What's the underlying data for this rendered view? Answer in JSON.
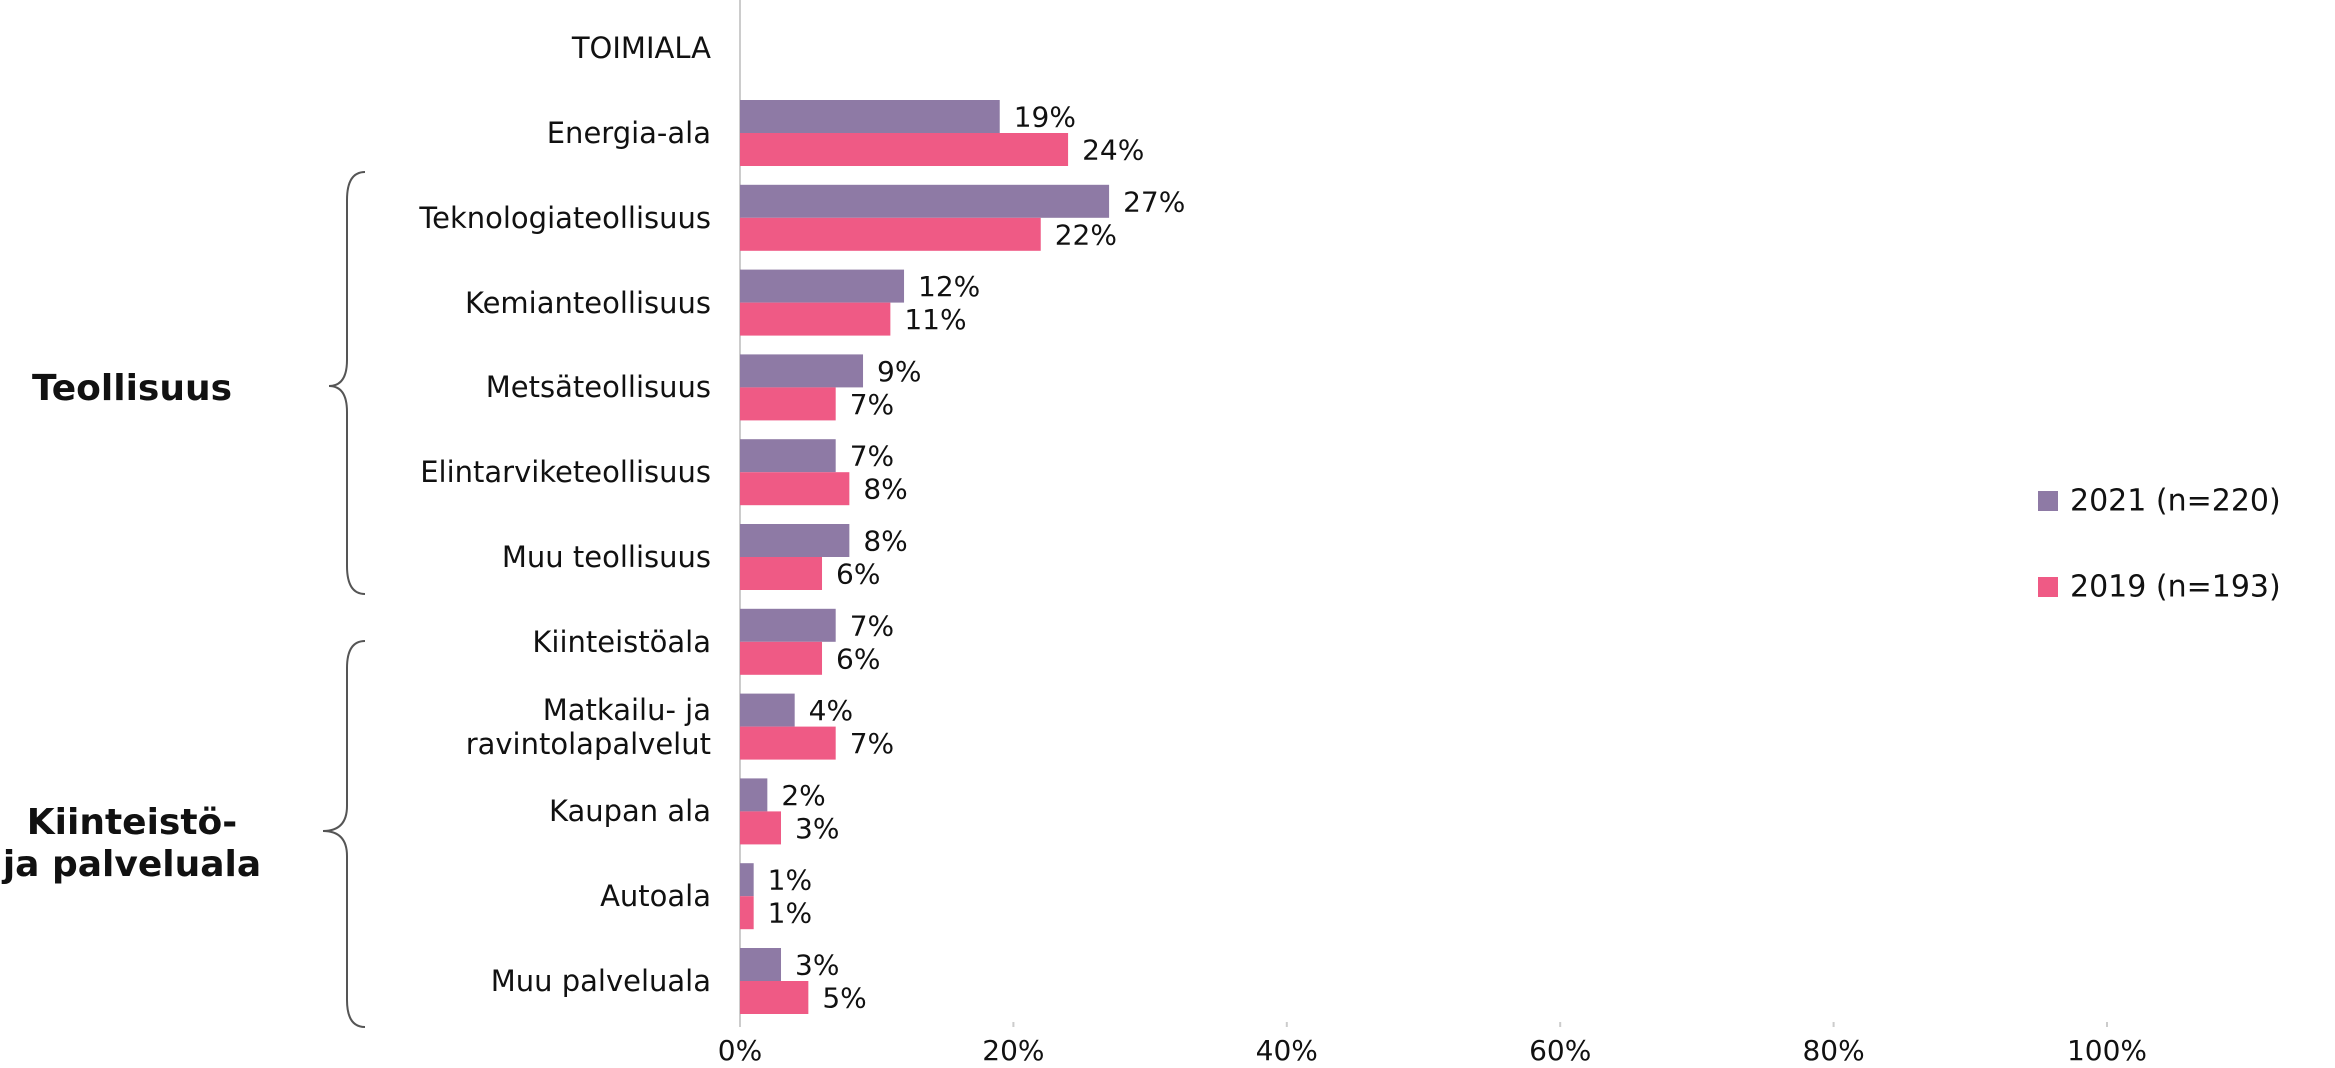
{
  "chart_data": {
    "type": "hbar",
    "header": "TOIMIALA",
    "groups": [
      {
        "label": "Teollisuus"
      },
      {
        "label": "Kiinteistö-\nja palveluala"
      }
    ],
    "categories": [
      "Energia-ala",
      "Teknologiateollisuus",
      "Kemianteollisuus",
      "Metsäteollisuus",
      "Elintarviketeollisuus",
      "Muu teollisuus",
      "Kiinteistöala",
      "Matkailu- ja\nravintolapalvelut",
      "Kaupan ala",
      "Autoala",
      "Muu palveluala"
    ],
    "series": [
      {
        "name": "2021 (n=220)",
        "color": "#8e7aa5",
        "values": [
          19,
          27,
          12,
          9,
          7,
          8,
          7,
          4,
          2,
          1,
          3
        ],
        "value_labels": [
          "19%",
          "27%",
          "12%",
          "9%",
          "7%",
          "8%",
          "7%",
          "4%",
          "2%",
          "1%",
          "3%"
        ]
      },
      {
        "name": "2019 (n=193)",
        "color": "#ef5a85",
        "values": [
          24,
          22,
          11,
          7,
          8,
          6,
          6,
          7,
          3,
          1,
          5
        ],
        "value_labels": [
          "24%",
          "22%",
          "11%",
          "7%",
          "8%",
          "6%",
          "6%",
          "7%",
          "3%",
          "1%",
          "5%"
        ]
      }
    ],
    "xlim": [
      0,
      100
    ],
    "xticks": [
      {
        "value": 0,
        "label": "0%"
      },
      {
        "value": 20,
        "label": "20%"
      },
      {
        "value": 40,
        "label": "40%"
      },
      {
        "value": 60,
        "label": "60%"
      },
      {
        "value": 80,
        "label": "80%"
      },
      {
        "value": 100,
        "label": "100%"
      }
    ],
    "grid": false,
    "legend": "right"
  }
}
